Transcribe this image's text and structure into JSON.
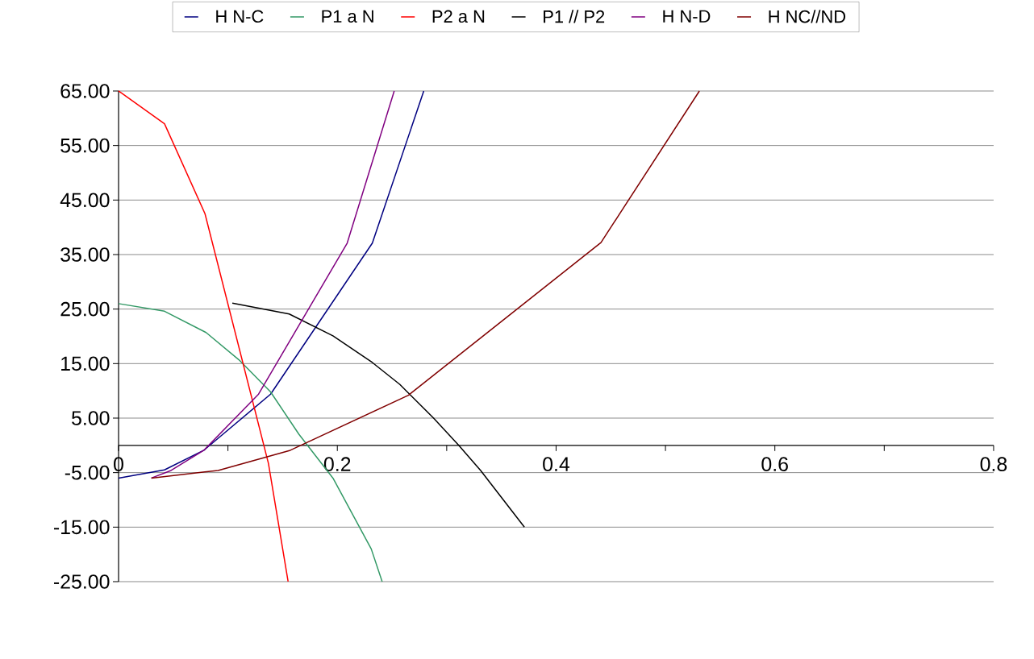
{
  "chart_data": {
    "type": "line",
    "legend": "top",
    "grid": "y",
    "line_style": "solid",
    "xlim": [
      0,
      0.8
    ],
    "ylim": [
      -25,
      65
    ],
    "xticks": [
      0,
      {
        "value": 0.1,
        "label": null
      },
      0.2,
      {
        "value": 0.3,
        "label": null
      },
      0.4,
      {
        "value": 0.5,
        "label": null
      },
      0.6,
      {
        "value": 0.7,
        "label": null
      },
      0.8
    ],
    "yticks": [
      {
        "value": -25,
        "label": "-25.00"
      },
      {
        "value": -15,
        "label": "-15.00"
      },
      {
        "value": -5,
        "label": "-5.00"
      },
      {
        "value": 5,
        "label": "5.00"
      },
      {
        "value": 15,
        "label": "15.00"
      },
      {
        "value": 25,
        "label": "25.00"
      },
      {
        "value": 35,
        "label": "35.00"
      },
      {
        "value": 45,
        "label": "45.00"
      },
      {
        "value": 55,
        "label": "55.00"
      },
      {
        "value": 65,
        "label": "65.00"
      }
    ],
    "series": [
      {
        "name": "H N-C",
        "color": "#000080",
        "x": [
          0,
          0.042,
          0.078,
          0.139,
          0.232,
          0.279
        ],
        "values": [
          -6.0,
          -4.5,
          -0.9,
          9.4,
          37.1,
          65
        ]
      },
      {
        "name": "P1 a N",
        "color": "#339966",
        "x": [
          0,
          0.042,
          0.08,
          0.11,
          0.139,
          0.165,
          0.196,
          0.231,
          0.241
        ],
        "values": [
          26.0,
          24.6,
          20.7,
          15.7,
          9.8,
          2.0,
          -6.0,
          -19.0,
          -25
        ]
      },
      {
        "name": "P2 a N",
        "color": "#ff0000",
        "x": [
          0,
          0.042,
          0.079,
          0.137,
          0.155
        ],
        "values": [
          65,
          59.0,
          42.5,
          -3.3,
          -25
        ]
      },
      {
        "name": "P1 // P2",
        "color": "#000000",
        "x": [
          0.104,
          0.156,
          0.196,
          0.232,
          0.257,
          0.288,
          0.311,
          0.331,
          0.371
        ],
        "values": [
          26.1,
          24.1,
          20.1,
          15.2,
          11.2,
          5.0,
          0,
          -4.6,
          -15.0
        ]
      },
      {
        "name": "H N-D",
        "color": "#800080",
        "x": [
          0.03,
          0.048,
          0.078,
          0.128,
          0.209,
          0.252
        ],
        "values": [
          -6.0,
          -4.6,
          -0.9,
          9.4,
          37.1,
          65
        ]
      },
      {
        "name": "H NC//ND",
        "color": "#800000",
        "x": [
          0.03,
          0.091,
          0.157,
          0.265,
          0.441,
          0.531
        ],
        "values": [
          -6.0,
          -4.6,
          -0.9,
          9.2,
          37.2,
          65
        ]
      }
    ]
  }
}
